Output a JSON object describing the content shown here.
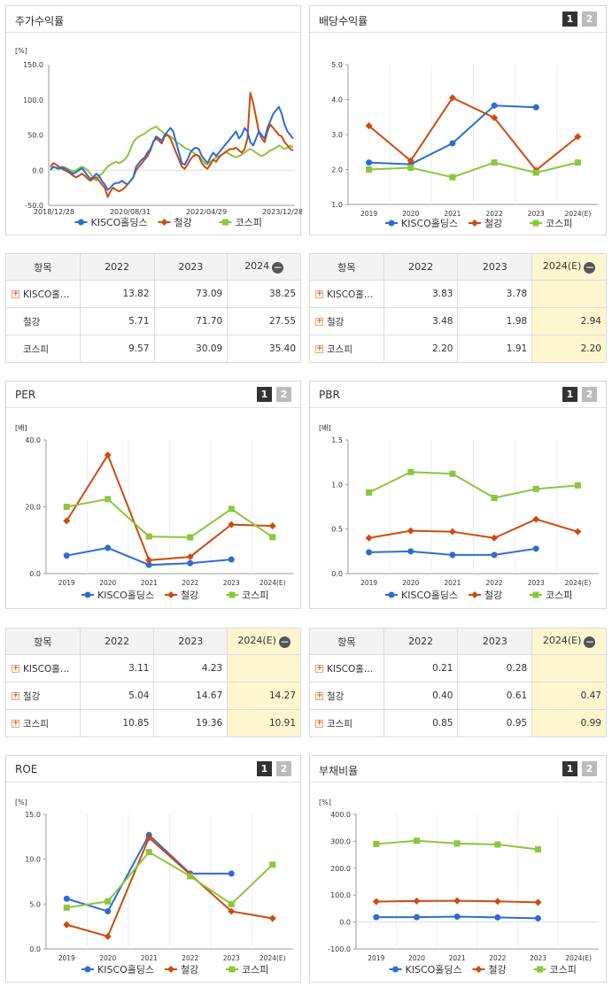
{
  "colors": {
    "kisco": "#2f6bd4",
    "steel": "#cf4a10",
    "kospi": "#8cc63e"
  },
  "legend": [
    "KISCO홀딩스",
    "철강",
    "코스피"
  ],
  "panels": {
    "stock": {
      "title": "주가수익률",
      "unit": "[%]"
    },
    "dividend": {
      "title": "배당수익률",
      "unit": "",
      "btn1": "1",
      "btn2": "2"
    },
    "per": {
      "title": "PER",
      "unit": "[배]",
      "btn1": "1",
      "btn2": "2"
    },
    "pbr": {
      "title": "PBR",
      "unit": "[배]",
      "btn1": "1",
      "btn2": "2"
    },
    "roe": {
      "title": "ROE",
      "unit": "[%]",
      "btn1": "1",
      "btn2": "2"
    },
    "debt": {
      "title": "부채비율",
      "unit": "[%]",
      "btn1": "1",
      "btn2": "2"
    }
  },
  "tables": {
    "stock": {
      "headers": [
        "항목",
        "2022",
        "2023",
        "2024"
      ],
      "rows": [
        {
          "name": "KISCO홀…",
          "v": [
            "13.82",
            "73.09",
            "38.25"
          ]
        },
        {
          "name": "철강",
          "v": [
            "5.71",
            "71.70",
            "27.55"
          ]
        },
        {
          "name": "코스피",
          "v": [
            "9.57",
            "30.09",
            "35.40"
          ]
        }
      ]
    },
    "dividend": {
      "headers": [
        "항목",
        "2022",
        "2023",
        "2024(E)"
      ],
      "rows": [
        {
          "name": "KISCO홀…",
          "v": [
            "3.83",
            "3.78",
            ""
          ]
        },
        {
          "name": "철강",
          "v": [
            "3.48",
            "1.98",
            "2.94"
          ]
        },
        {
          "name": "코스피",
          "v": [
            "2.20",
            "1.91",
            "2.20"
          ]
        }
      ]
    },
    "per": {
      "headers": [
        "항목",
        "2022",
        "2023",
        "2024(E)"
      ],
      "rows": [
        {
          "name": "KISCO홀…",
          "v": [
            "3.11",
            "4.23",
            ""
          ]
        },
        {
          "name": "철강",
          "v": [
            "5.04",
            "14.67",
            "14.27"
          ]
        },
        {
          "name": "코스피",
          "v": [
            "10.85",
            "19.36",
            "10.91"
          ]
        }
      ]
    },
    "pbr": {
      "headers": [
        "항목",
        "2022",
        "2023",
        "2024(E)"
      ],
      "rows": [
        {
          "name": "KISCO홀…",
          "v": [
            "0.21",
            "0.28",
            ""
          ]
        },
        {
          "name": "철강",
          "v": [
            "0.40",
            "0.61",
            "0.47"
          ]
        },
        {
          "name": "코스피",
          "v": [
            "0.85",
            "0.95",
            "0.99"
          ]
        }
      ]
    }
  },
  "chart_data": [
    {
      "id": "stock",
      "type": "line",
      "title": "주가수익률",
      "ylabel": "[%]",
      "ylim": [
        -50,
        150
      ],
      "yticks": [
        "150.0",
        "100.0",
        "50.0",
        "0.0",
        "-50.0"
      ],
      "x_labels": [
        "2018/12/28",
        "2020/08/31",
        "2022/04/29",
        "2023/12/28"
      ],
      "series": [
        {
          "name": "KISCO홀딩스",
          "values": [
            0,
            5,
            3,
            2,
            4,
            3,
            0,
            -3,
            -5,
            -3,
            0,
            3,
            -2,
            -8,
            -12,
            -10,
            -5,
            -8,
            -15,
            -20,
            -28,
            -25,
            -20,
            -18,
            -18,
            -15,
            -18,
            -20,
            -15,
            -10,
            5,
            10,
            15,
            18,
            25,
            30,
            40,
            48,
            45,
            42,
            50,
            55,
            60,
            55,
            40,
            25,
            10,
            8,
            15,
            25,
            30,
            32,
            30,
            20,
            15,
            10,
            18,
            25,
            20,
            25,
            30,
            35,
            40,
            45,
            50,
            55,
            45,
            50,
            60,
            55,
            40,
            35,
            45,
            55,
            50,
            45,
            60,
            70,
            80,
            85,
            90,
            80,
            65,
            55,
            50,
            45
          ]
        },
        {
          "name": "철강",
          "values": [
            5,
            10,
            8,
            5,
            2,
            0,
            -2,
            -5,
            -8,
            -10,
            -8,
            -5,
            -8,
            -12,
            -15,
            -12,
            -10,
            -15,
            -20,
            -25,
            -38,
            -30,
            -25,
            -28,
            -30,
            -28,
            -25,
            -20,
            -15,
            -10,
            0,
            5,
            10,
            15,
            20,
            28,
            40,
            45,
            42,
            38,
            48,
            50,
            45,
            35,
            25,
            15,
            5,
            2,
            8,
            15,
            20,
            22,
            20,
            10,
            5,
            2,
            8,
            15,
            12,
            18,
            22,
            25,
            28,
            30,
            30,
            32,
            28,
            25,
            30,
            45,
            110,
            95,
            75,
            55,
            45,
            40,
            55,
            65,
            60,
            55,
            50,
            48,
            40,
            35,
            30,
            28
          ]
        },
        {
          "name": "코스피",
          "values": [
            2,
            5,
            4,
            3,
            5,
            4,
            2,
            0,
            -2,
            0,
            3,
            5,
            3,
            0,
            -5,
            -10,
            -15,
            -8,
            -5,
            0,
            5,
            8,
            10,
            12,
            10,
            12,
            15,
            20,
            30,
            40,
            45,
            48,
            50,
            52,
            55,
            58,
            60,
            62,
            58,
            55,
            52,
            50,
            48,
            45,
            40,
            38,
            35,
            32,
            30,
            28,
            25,
            22,
            20,
            15,
            10,
            8,
            12,
            15,
            18,
            20,
            22,
            25,
            25,
            22,
            20,
            18,
            20,
            22,
            25,
            28,
            30,
            28,
            25,
            22,
            20,
            22,
            25,
            28,
            30,
            32,
            35,
            33,
            30,
            32,
            35,
            32
          ]
        }
      ]
    },
    {
      "id": "dividend",
      "type": "line",
      "title": "배당수익률",
      "x": [
        "2019",
        "2020",
        "2021",
        "2022",
        "2023",
        "2024(E)"
      ],
      "ylim": [
        1.0,
        5.0
      ],
      "yticks": [
        "5.0",
        "4.0",
        "3.0",
        "2.0",
        "1.0"
      ],
      "series": [
        {
          "name": "KISCO홀딩스",
          "values": [
            2.2,
            2.15,
            2.75,
            3.83,
            3.78,
            null
          ]
        },
        {
          "name": "철강",
          "values": [
            3.25,
            2.25,
            4.05,
            3.48,
            1.98,
            2.94
          ]
        },
        {
          "name": "코스피",
          "values": [
            2.0,
            2.05,
            1.78,
            2.2,
            1.91,
            2.2
          ]
        }
      ]
    },
    {
      "id": "per",
      "type": "line",
      "title": "PER",
      "ylabel": "[배]",
      "x": [
        "2019",
        "2020",
        "2021",
        "2022",
        "2023",
        "2024(E)"
      ],
      "ylim": [
        0,
        40
      ],
      "yticks": [
        "40.0",
        "20.0",
        "0.0"
      ],
      "series": [
        {
          "name": "KISCO홀딩스",
          "values": [
            5.4,
            7.7,
            2.6,
            3.11,
            4.23,
            null
          ]
        },
        {
          "name": "철강",
          "values": [
            15.8,
            35.5,
            4.0,
            5.04,
            14.67,
            14.27
          ]
        },
        {
          "name": "코스피",
          "values": [
            20.0,
            22.3,
            11.1,
            10.85,
            19.36,
            10.91
          ]
        }
      ]
    },
    {
      "id": "pbr",
      "type": "line",
      "title": "PBR",
      "ylabel": "[배]",
      "x": [
        "2019",
        "2020",
        "2021",
        "2022",
        "2023",
        "2024(E)"
      ],
      "ylim": [
        0,
        1.5
      ],
      "yticks": [
        "1.5",
        "1.0",
        "0.5",
        "0.0"
      ],
      "series": [
        {
          "name": "KISCO홀딩스",
          "values": [
            0.24,
            0.25,
            0.21,
            0.21,
            0.28,
            null
          ]
        },
        {
          "name": "철강",
          "values": [
            0.4,
            0.48,
            0.47,
            0.4,
            0.61,
            0.47
          ]
        },
        {
          "name": "코스피",
          "values": [
            0.91,
            1.14,
            1.12,
            0.85,
            0.95,
            0.99
          ]
        }
      ]
    },
    {
      "id": "roe",
      "type": "line",
      "title": "ROE",
      "ylabel": "[%]",
      "x": [
        "2019",
        "2020",
        "2021",
        "2022",
        "2023",
        "2024(E)"
      ],
      "ylim": [
        0,
        15
      ],
      "yticks": [
        "15.0",
        "10.0",
        "5.0",
        "0.0"
      ],
      "series": [
        {
          "name": "KISCO홀딩스",
          "values": [
            5.6,
            4.2,
            12.7,
            8.4,
            8.4,
            null
          ]
        },
        {
          "name": "철강",
          "values": [
            2.7,
            1.4,
            12.4,
            8.3,
            4.2,
            3.4
          ]
        },
        {
          "name": "코스피",
          "values": [
            4.6,
            5.3,
            10.8,
            8.1,
            5.0,
            9.4
          ]
        }
      ]
    },
    {
      "id": "debt",
      "type": "line",
      "title": "부채비율",
      "ylabel": "[%]",
      "x": [
        "2019",
        "2020",
        "2021",
        "2022",
        "2023",
        "2024(E)"
      ],
      "ylim": [
        -100,
        400
      ],
      "yticks": [
        "400.0",
        "300.0",
        "200.0",
        "100.0",
        "0.0",
        "-100.0"
      ],
      "series": [
        {
          "name": "KISCO홀딩스",
          "values": [
            18,
            18,
            20,
            17,
            14,
            null
          ]
        },
        {
          "name": "철강",
          "values": [
            76,
            78,
            79,
            77,
            73,
            null
          ]
        },
        {
          "name": "코스피",
          "values": [
            290,
            302,
            292,
            288,
            270,
            null
          ]
        }
      ]
    }
  ]
}
